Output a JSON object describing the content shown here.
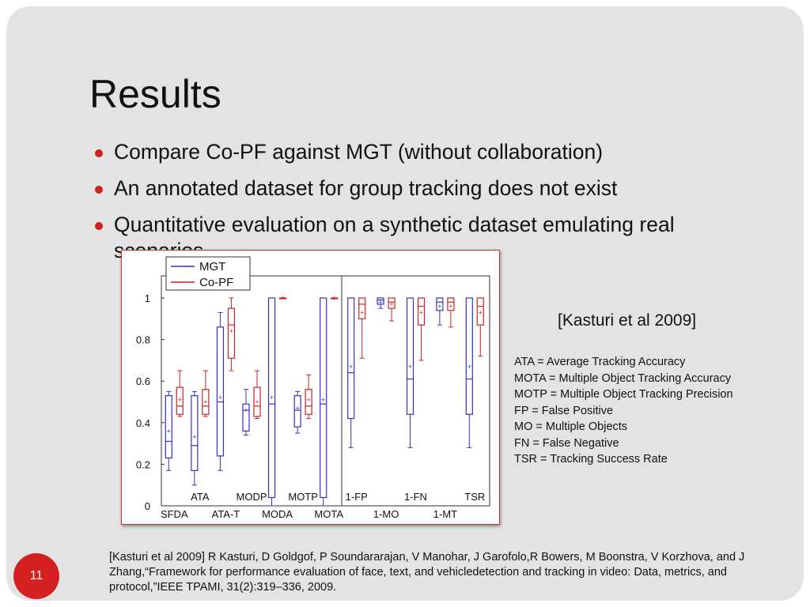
{
  "slide": {
    "title": "Results",
    "bullets": [
      "Compare Co-PF against MGT (without collaboration)",
      "An annotated dataset for group tracking does not exist",
      "Quantitative evaluation on a synthetic dataset emulating real scenarios"
    ],
    "citation_tag": "[Kasturi et al 2009]",
    "abbreviations": [
      "ATA = Average Tracking Accuracy",
      "MOTA = Multiple Object Tracking Accuracy",
      "MOTP = Multiple Object Tracking Precision",
      "FP = False Positive",
      "MO = Multiple Objects",
      "FN = False Negative",
      "TSR = Tracking Success Rate"
    ],
    "reference": "[Kasturi et al 2009] R Kasturi, D Goldgof, P Soundararajan, V Manohar, J Garofolo,R Bowers, M Boonstra, V Korzhova, and J Zhang,“Framework for performance evaluation of face, text, and vehicledetection and tracking in video: Data, metrics, and protocol,”IEEE TPAMI, 31(2):319–336, 2009.",
    "page_number": "11"
  },
  "colors": {
    "background": "#e3e3e3",
    "accent": "#cc2222",
    "mgt": "#3333bb",
    "copf": "#cc2222"
  },
  "chart_data": {
    "type": "box",
    "ylim": [
      0,
      1
    ],
    "yticks": [
      "0",
      "0.2",
      "0.4",
      "0.6",
      "0.8",
      "1"
    ],
    "legend": {
      "position": "top-left",
      "entries": [
        "MGT",
        "Co-PF"
      ]
    },
    "series_names": [
      "MGT",
      "Co-PF"
    ],
    "panels": [
      {
        "top_labels": [
          "ATA",
          "MODP",
          "MOTP"
        ],
        "bottom_labels": [
          "SFDA",
          "ATA-T",
          "MODA",
          "MOTA"
        ],
        "groups": [
          {
            "label": "SFDA",
            "MGT": {
              "min": 0.17,
              "q1": 0.23,
              "median": 0.31,
              "q3": 0.53,
              "max": 0.55,
              "mean": 0.36
            },
            "Co-PF": {
              "min": 0.43,
              "q1": 0.44,
              "median": 0.48,
              "q3": 0.57,
              "max": 0.65,
              "mean": 0.51
            }
          },
          {
            "label": "ATA",
            "MGT": {
              "min": 0.1,
              "q1": 0.17,
              "median": 0.29,
              "q3": 0.53,
              "max": 0.55,
              "mean": 0.33
            },
            "Co-PF": {
              "min": 0.43,
              "q1": 0.44,
              "median": 0.48,
              "q3": 0.56,
              "max": 0.65,
              "mean": 0.5
            }
          },
          {
            "label": "ATA-T",
            "MGT": {
              "min": 0.17,
              "q1": 0.24,
              "median": 0.5,
              "q3": 0.86,
              "max": 0.93,
              "mean": 0.52
            },
            "Co-PF": {
              "min": 0.65,
              "q1": 0.71,
              "median": 0.87,
              "q3": 0.95,
              "max": 1.0,
              "mean": 0.84
            }
          },
          {
            "label": "MODP",
            "MGT": {
              "min": 0.34,
              "q1": 0.36,
              "median": 0.46,
              "q3": 0.49,
              "max": 0.56,
              "mean": 0.46
            },
            "Co-PF": {
              "min": 0.42,
              "q1": 0.43,
              "median": 0.48,
              "q3": 0.57,
              "max": 0.65,
              "mean": 0.5
            }
          },
          {
            "label": "MODA",
            "MGT": {
              "min": 0.0,
              "q1": 0.04,
              "median": 0.49,
              "q3": 1.0,
              "max": 1.0,
              "mean": 0.52
            },
            "Co-PF": {
              "min": 1.0,
              "q1": 1.0,
              "median": 1.0,
              "q3": 1.0,
              "max": 1.0,
              "mean": 1.0
            }
          },
          {
            "label": "MOTP",
            "MGT": {
              "min": 0.35,
              "q1": 0.38,
              "median": 0.46,
              "q3": 0.53,
              "max": 0.55,
              "mean": 0.47
            },
            "Co-PF": {
              "min": 0.42,
              "q1": 0.44,
              "median": 0.48,
              "q3": 0.56,
              "max": 0.63,
              "mean": 0.51
            }
          },
          {
            "label": "MOTA",
            "MGT": {
              "min": 0.0,
              "q1": 0.04,
              "median": 0.49,
              "q3": 1.0,
              "max": 1.0,
              "mean": 0.51
            },
            "Co-PF": {
              "min": 1.0,
              "q1": 1.0,
              "median": 1.0,
              "q3": 1.0,
              "max": 1.0,
              "mean": 1.0
            }
          }
        ]
      },
      {
        "top_labels": [
          "1-FP",
          "1-FN",
          "TSR"
        ],
        "bottom_labels": [
          "1-MO",
          "1-MT"
        ],
        "groups": [
          {
            "label": "1-FP",
            "MGT": {
              "min": 0.28,
              "q1": 0.42,
              "median": 0.64,
              "q3": 1.0,
              "max": 1.0,
              "mean": 0.67
            },
            "Co-PF": {
              "min": 0.71,
              "q1": 0.9,
              "median": 0.97,
              "q3": 1.0,
              "max": 1.0,
              "mean": 0.93
            }
          },
          {
            "label": "1-MO",
            "MGT": {
              "min": 0.95,
              "q1": 0.97,
              "median": 0.99,
              "q3": 1.0,
              "max": 1.0,
              "mean": 0.98
            },
            "Co-PF": {
              "min": 0.89,
              "q1": 0.95,
              "median": 0.98,
              "q3": 1.0,
              "max": 1.0,
              "mean": 0.97
            }
          },
          {
            "label": "1-FN",
            "MGT": {
              "min": 0.28,
              "q1": 0.44,
              "median": 0.61,
              "q3": 1.0,
              "max": 1.0,
              "mean": 0.67
            },
            "Co-PF": {
              "min": 0.7,
              "q1": 0.87,
              "median": 0.96,
              "q3": 1.0,
              "max": 1.0,
              "mean": 0.93
            }
          },
          {
            "label": "1-MT",
            "MGT": {
              "min": 0.87,
              "q1": 0.94,
              "median": 0.98,
              "q3": 1.0,
              "max": 1.0,
              "mean": 0.96
            },
            "Co-PF": {
              "min": 0.86,
              "q1": 0.94,
              "median": 0.98,
              "q3": 1.0,
              "max": 1.0,
              "mean": 0.96
            }
          },
          {
            "label": "TSR",
            "MGT": {
              "min": 0.28,
              "q1": 0.44,
              "median": 0.61,
              "q3": 1.0,
              "max": 1.0,
              "mean": 0.67
            },
            "Co-PF": {
              "min": 0.72,
              "q1": 0.87,
              "median": 0.96,
              "q3": 1.0,
              "max": 1.0,
              "mean": 0.93
            }
          }
        ]
      }
    ]
  }
}
